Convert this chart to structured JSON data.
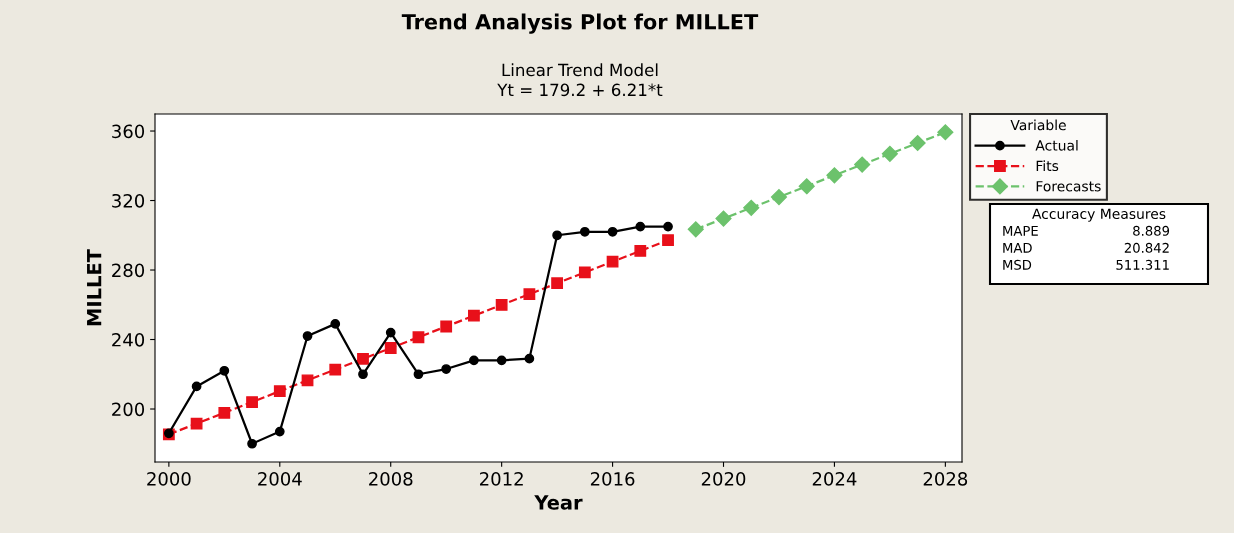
{
  "chart_data": {
    "type": "line",
    "title": "Trend Analysis Plot for MILLET",
    "subtitle": "Linear Trend Model\nYt = 179.2 + 6.21*t",
    "xlabel": "Year",
    "ylabel": "MILLET",
    "xlim": [
      1999.5,
      2028.6
    ],
    "xticks": [
      2000,
      2004,
      2008,
      2012,
      2016,
      2020,
      2024,
      2028
    ],
    "ylim": [
      169.5,
      369.8
    ],
    "yticks": [
      200,
      240,
      280,
      320,
      360
    ],
    "grid": false,
    "legend": "right",
    "legend_title": "Variable",
    "series": [
      {
        "name": "Actual",
        "color": "#000000",
        "marker": "circle",
        "line_style": "solid",
        "x": [
          2000,
          2001,
          2002,
          2003,
          2004,
          2005,
          2006,
          2007,
          2008,
          2009,
          2010,
          2011,
          2012,
          2013,
          2014,
          2015,
          2016,
          2017,
          2018
        ],
        "values": [
          186,
          213,
          222,
          180,
          187,
          242,
          249,
          220,
          244,
          220,
          223,
          228,
          228,
          229,
          300,
          302,
          302,
          305,
          305
        ]
      },
      {
        "name": "Fits",
        "color": "#e8101a",
        "marker": "square",
        "line_style": "dashed",
        "x": [
          2000,
          2001,
          2002,
          2003,
          2004,
          2005,
          2006,
          2007,
          2008,
          2009,
          2010,
          2011,
          2012,
          2013,
          2014,
          2015,
          2016,
          2017,
          2018
        ],
        "values": [
          185.4,
          191.6,
          197.8,
          204.0,
          210.3,
          216.5,
          222.7,
          228.9,
          235.1,
          241.3,
          247.5,
          253.7,
          259.9,
          266.1,
          272.4,
          278.6,
          284.8,
          291.0,
          297.2
        ]
      },
      {
        "name": "Forecasts",
        "color": "#6cc26c",
        "marker": "diamond",
        "line_style": "dashed",
        "x": [
          2019,
          2020,
          2021,
          2022,
          2023,
          2024,
          2025,
          2026,
          2027,
          2028
        ],
        "values": [
          303.4,
          309.6,
          315.8,
          322.0,
          328.2,
          334.5,
          340.7,
          346.9,
          353.1,
          359.3
        ]
      }
    ],
    "annotations": [
      "Accuracy Measures",
      "MAPE",
      "8.889",
      "MAD",
      "20.842",
      "MSD",
      "511.311"
    ]
  }
}
